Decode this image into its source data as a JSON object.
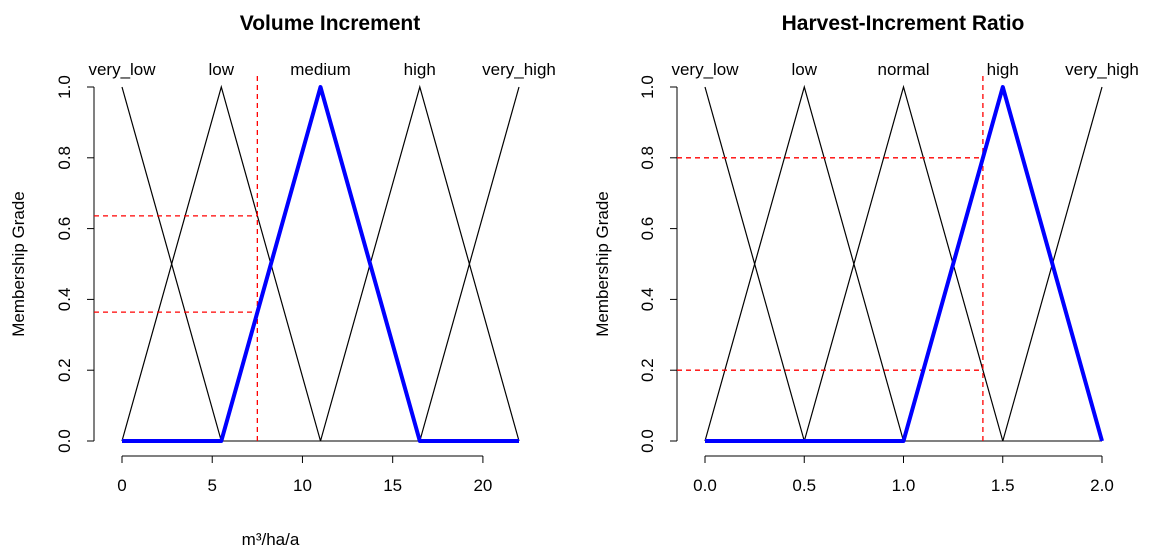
{
  "chart_data": [
    {
      "type": "line",
      "title": "Volume Increment",
      "xlabel": "m³/ha/a",
      "ylabel": "Membership Grade",
      "xlim": [
        0,
        22
      ],
      "ylim": [
        0,
        1
      ],
      "x_ticks": [
        0,
        5,
        10,
        15,
        20
      ],
      "x_tick_labels": [
        "0",
        "5",
        "10",
        "15",
        "20"
      ],
      "y_ticks": [
        0,
        0.2,
        0.4,
        0.6,
        0.8,
        1
      ],
      "y_tick_labels": [
        "0.0",
        "0.2",
        "0.4",
        "0.6",
        "0.8",
        "1.0"
      ],
      "grid": false,
      "term_labels": [
        {
          "name": "very_low",
          "x": 0
        },
        {
          "name": "low",
          "x": 5.5
        },
        {
          "name": "medium",
          "x": 11
        },
        {
          "name": "high",
          "x": 16.5
        },
        {
          "name": "very_high",
          "x": 22
        }
      ],
      "series": [
        {
          "name": "very_low",
          "highlight": false,
          "points": [
            [
              0,
              1
            ],
            [
              5.5,
              0
            ]
          ]
        },
        {
          "name": "low",
          "highlight": false,
          "points": [
            [
              0,
              0
            ],
            [
              5.5,
              1
            ],
            [
              11,
              0
            ]
          ]
        },
        {
          "name": "medium",
          "highlight": true,
          "points": [
            [
              0,
              0
            ],
            [
              5.5,
              0
            ],
            [
              11,
              1
            ],
            [
              16.5,
              0
            ],
            [
              22,
              0
            ]
          ]
        },
        {
          "name": "high",
          "highlight": false,
          "points": [
            [
              11,
              0
            ],
            [
              16.5,
              1
            ],
            [
              22,
              0
            ]
          ]
        },
        {
          "name": "very_high",
          "highlight": false,
          "points": [
            [
              16.5,
              0
            ],
            [
              22,
              1
            ]
          ]
        }
      ],
      "input_x": 7.5,
      "memberships": [
        0.636,
        0.364
      ]
    },
    {
      "type": "line",
      "title": "Harvest-Increment Ratio",
      "xlabel": "",
      "ylabel": "Membership Grade",
      "xlim": [
        0,
        2
      ],
      "ylim": [
        0,
        1
      ],
      "x_ticks": [
        0,
        0.5,
        1,
        1.5,
        2
      ],
      "x_tick_labels": [
        "0.0",
        "0.5",
        "1.0",
        "1.5",
        "2.0"
      ],
      "y_ticks": [
        0,
        0.2,
        0.4,
        0.6,
        0.8,
        1
      ],
      "y_tick_labels": [
        "0.0",
        "0.2",
        "0.4",
        "0.6",
        "0.8",
        "1.0"
      ],
      "grid": false,
      "term_labels": [
        {
          "name": "very_low",
          "x": 0
        },
        {
          "name": "low",
          "x": 0.5
        },
        {
          "name": "normal",
          "x": 1
        },
        {
          "name": "high",
          "x": 1.5
        },
        {
          "name": "very_high",
          "x": 2
        }
      ],
      "series": [
        {
          "name": "very_low",
          "highlight": false,
          "points": [
            [
              0,
              1
            ],
            [
              0.5,
              0
            ]
          ]
        },
        {
          "name": "low",
          "highlight": false,
          "points": [
            [
              0,
              0
            ],
            [
              0.5,
              1
            ],
            [
              1,
              0
            ]
          ]
        },
        {
          "name": "normal",
          "highlight": false,
          "points": [
            [
              0.5,
              0
            ],
            [
              1,
              1
            ],
            [
              1.5,
              0
            ]
          ]
        },
        {
          "name": "high",
          "highlight": true,
          "points": [
            [
              0,
              0
            ],
            [
              1,
              0
            ],
            [
              1.5,
              1
            ],
            [
              2,
              0
            ]
          ]
        },
        {
          "name": "very_high",
          "highlight": false,
          "points": [
            [
              1.5,
              0
            ],
            [
              2,
              1
            ]
          ]
        }
      ],
      "input_x": 1.4,
      "memberships": [
        0.8,
        0.2
      ]
    }
  ],
  "colors": {
    "highlight": "#0000ff",
    "curve": "#000000",
    "reference": "#ff0000"
  }
}
